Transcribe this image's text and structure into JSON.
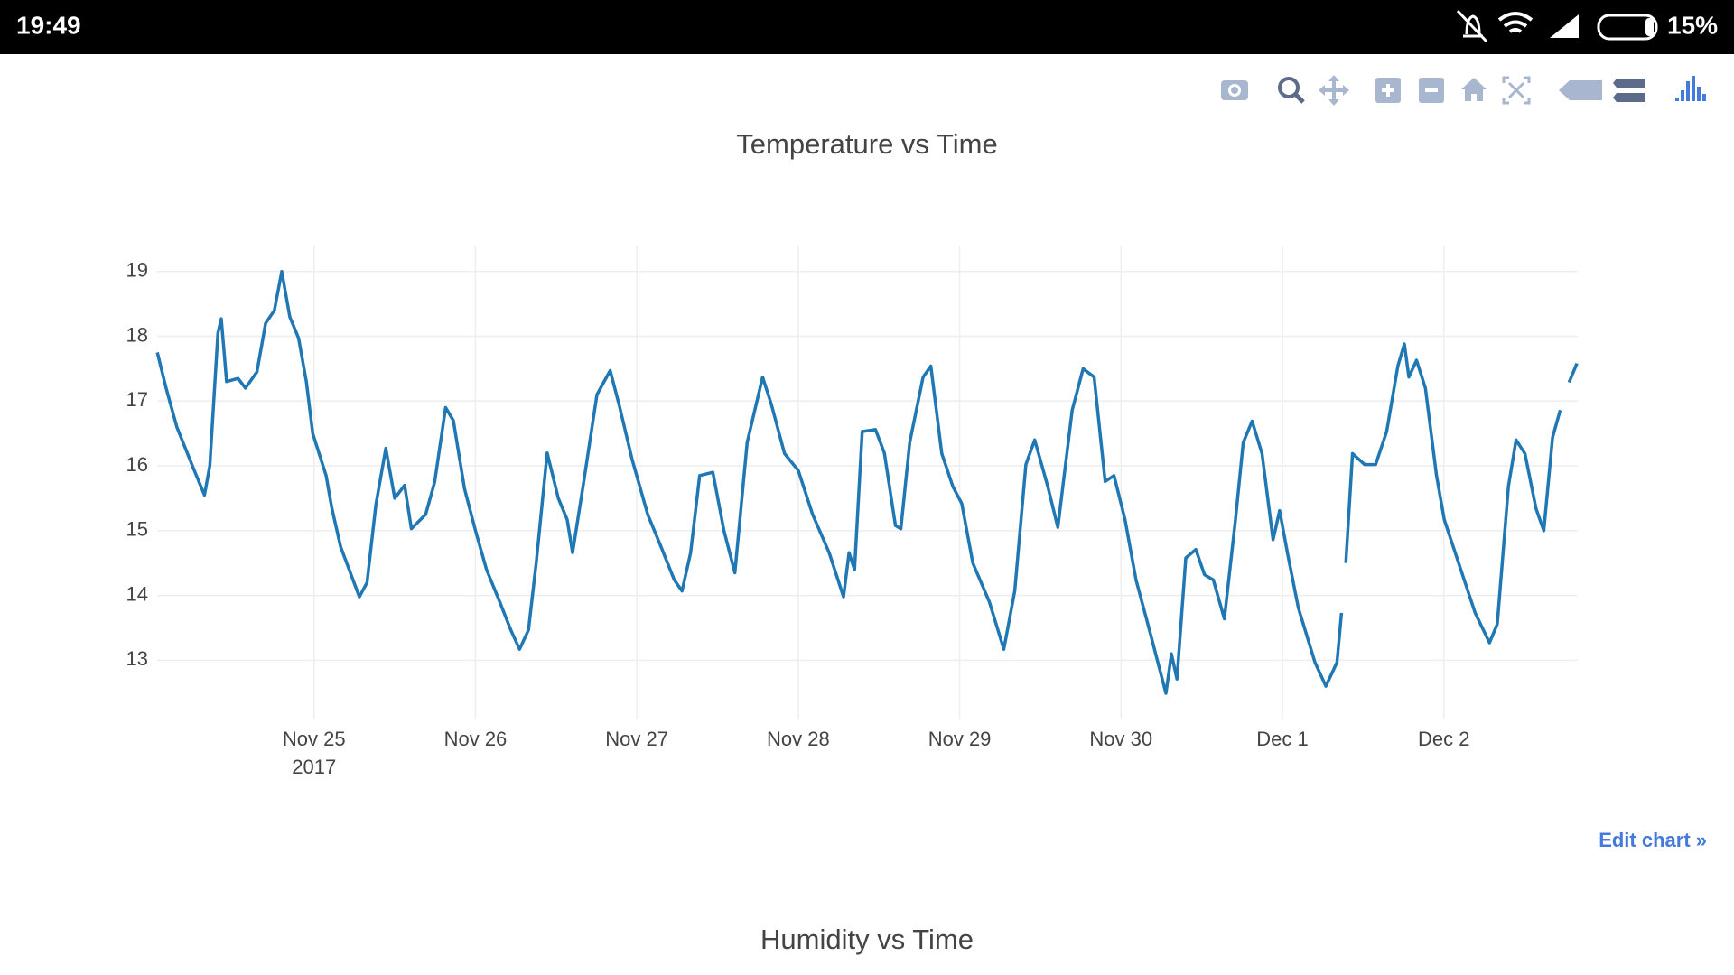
{
  "status_bar": {
    "time": "19:49",
    "battery": "15%"
  },
  "chart_data": {
    "type": "line",
    "title": "Temperature vs Time",
    "x": [
      "2017-11-24T00:42",
      "2017-11-24T02:00",
      "2017-11-24T03:36",
      "2017-11-24T06:06",
      "2017-11-24T07:42",
      "2017-11-24T08:30",
      "2017-11-24T09:42",
      "2017-11-24T10:12",
      "2017-11-24T11:00",
      "2017-11-24T12:42",
      "2017-11-24T13:48",
      "2017-11-24T15:30",
      "2017-11-24T16:48",
      "2017-11-24T18:06",
      "2017-11-24T19:12",
      "2017-11-24T20:24",
      "2017-11-24T21:42",
      "2017-11-24T22:51",
      "2017-11-24T23:48",
      "2017-11-25T01:48",
      "2017-11-25T02:38",
      "2017-11-25T03:57",
      "2017-11-25T05:35",
      "2017-11-25T06:44",
      "2017-11-25T07:53",
      "2017-11-25T09:12",
      "2017-11-25T10:40",
      "2017-11-25T12:00",
      "2017-11-25T13:28",
      "2017-11-25T14:28",
      "2017-11-25T16:36",
      "2017-11-25T17:56",
      "2017-11-25T19:34",
      "2017-11-25T20:43",
      "2017-11-25T22:22",
      "2017-11-26T00:00",
      "2017-11-26T01:39",
      "2017-11-26T03:37",
      "2017-11-26T05:15",
      "2017-11-26T06:34",
      "2017-11-26T07:53",
      "2017-11-26T09:02",
      "2017-11-26T10:40",
      "2017-11-26T12:19",
      "2017-11-26T13:38",
      "2017-11-26T14:27",
      "2017-11-26T16:06",
      "2017-11-26T18:04",
      "2017-11-26T20:02",
      "2017-11-26T21:21",
      "2017-11-26T23:18",
      "2017-11-27T01:37",
      "2017-11-27T03:36",
      "2017-11-27T05:34",
      "2017-11-27T06:43",
      "2017-11-27T08:00",
      "2017-11-27T09:20",
      "2017-11-27T11:18",
      "2017-11-27T12:57",
      "2017-11-27T14:35",
      "2017-11-27T16:24",
      "2017-11-27T18:42",
      "2017-11-27T20:00",
      "2017-11-27T21:58",
      "2017-11-28T00:00",
      "2017-11-28T02:08",
      "2017-11-28T04:36",
      "2017-11-28T06:44",
      "2017-11-28T07:33",
      "2017-11-28T08:22",
      "2017-11-28T09:31",
      "2017-11-28T11:29",
      "2017-11-28T12:48",
      "2017-11-28T14:27",
      "2017-11-28T15:16",
      "2017-11-28T16:35",
      "2017-11-28T18:34",
      "2017-11-28T19:43",
      "2017-11-28T21:21",
      "2017-11-28T23:00",
      "2017-11-29T00:19",
      "2017-11-29T01:58",
      "2017-11-29T04:25",
      "2017-11-29T06:34",
      "2017-11-29T08:12",
      "2017-11-29T09:51",
      "2017-11-29T11:10",
      "2017-11-29T13:07",
      "2017-11-29T14:36",
      "2017-11-29T16:44",
      "2017-11-29T18:22",
      "2017-11-29T20:00",
      "2017-11-29T21:38",
      "2017-11-29T22:57",
      "2017-11-30T00:36",
      "2017-11-30T02:14",
      "2017-11-30T04:13",
      "2017-11-30T06:41",
      "2017-11-30T07:30",
      "2017-11-30T08:19",
      "2017-11-30T09:38",
      "2017-11-30T11:07",
      "2017-11-30T12:25",
      "2017-11-30T13:44",
      "2017-11-30T15:22",
      "2017-11-30T17:01",
      "2017-11-30T18:10",
      "2017-11-30T19:29",
      "2017-11-30T20:58",
      "2017-11-30T22:36",
      "2017-11-30T23:35",
      "2017-12-01T00:44",
      "2017-12-01T02:22",
      "2017-12-01T04:50",
      "2017-12-01T06:28",
      "2017-12-01T08:07",
      "2017-12-01T08:47",
      "2017-12-01T09:06",
      "2017-12-01T09:26",
      "2017-12-01T10:25",
      "2017-12-01T12:13",
      "2017-12-01T13:52",
      "2017-12-01T15:30",
      "2017-12-01T17:10",
      "2017-12-01T18:08",
      "2017-12-01T18:48",
      "2017-12-01T19:57",
      "2017-12-01T21:16",
      "2017-12-01T22:55",
      "2017-12-02T00:04",
      "2017-12-02T02:12",
      "2017-12-02T04:40",
      "2017-12-02T06:48",
      "2017-12-02T07:57",
      "2017-12-02T09:36",
      "2017-12-02T10:45",
      "2017-12-02T12:04",
      "2017-12-02T13:43",
      "2017-12-02T14:52",
      "2017-12-02T16:10",
      "2017-12-02T17:19",
      "2017-12-02T18:00",
      "2017-12-02T18:38",
      "2017-12-02T19:48"
    ],
    "series": [
      {
        "color": "#1f77b4",
        "values": [
          17.75,
          17.2,
          16.6,
          15.95,
          15.55,
          16.0,
          18.05,
          18.27,
          17.3,
          17.35,
          17.2,
          17.45,
          18.2,
          18.4,
          19.0,
          18.3,
          17.97,
          17.3,
          16.5,
          15.85,
          15.35,
          14.75,
          14.3,
          13.98,
          14.2,
          15.4,
          16.27,
          15.5,
          15.7,
          15.03,
          15.25,
          15.75,
          16.9,
          16.7,
          15.65,
          15.0,
          14.4,
          13.9,
          13.47,
          13.17,
          13.47,
          14.5,
          16.2,
          15.5,
          15.17,
          14.66,
          15.75,
          17.1,
          17.47,
          16.95,
          16.1,
          15.25,
          14.75,
          14.24,
          14.07,
          14.66,
          15.85,
          15.9,
          15.0,
          14.35,
          16.36,
          17.37,
          16.95,
          16.19,
          15.93,
          15.25,
          14.66,
          13.98,
          14.66,
          14.4,
          16.53,
          16.56,
          16.2,
          15.08,
          15.03,
          16.36,
          17.37,
          17.54,
          16.19,
          15.68,
          15.42,
          14.5,
          13.9,
          13.17,
          14.07,
          16.02,
          16.4,
          15.68,
          15.05,
          16.86,
          17.5,
          17.37,
          15.76,
          15.85,
          15.17,
          14.24,
          13.47,
          12.49,
          13.1,
          12.71,
          14.58,
          14.71,
          14.32,
          14.24,
          13.64,
          15.17,
          16.36,
          16.69,
          16.19,
          14.86,
          15.31,
          14.66,
          13.81,
          12.97,
          12.6,
          12.97,
          13.73,
          null,
          14.5,
          16.19,
          16.02,
          16.02,
          16.53,
          17.54,
          17.88,
          17.37,
          17.63,
          17.2,
          15.85,
          15.17,
          14.5,
          13.73,
          13.27,
          13.56,
          15.68,
          16.4,
          16.19,
          15.34,
          15.0,
          16.44,
          16.86,
          null,
          17.29,
          17.58
        ]
      }
    ],
    "xlim": [
      "2017-11-24T00:40",
      "2017-12-02T19:55"
    ],
    "ylim": [
      12.1,
      19.4
    ],
    "xticks": [
      {
        "value": "2017-11-25T00:00",
        "label": "Nov 25"
      },
      {
        "value": "2017-11-26T00:00",
        "label": "Nov 26"
      },
      {
        "value": "2017-11-27T00:00",
        "label": "Nov 27"
      },
      {
        "value": "2017-11-28T00:00",
        "label": "Nov 28"
      },
      {
        "value": "2017-11-29T00:00",
        "label": "Nov 29"
      },
      {
        "value": "2017-11-30T00:00",
        "label": "Nov 30"
      },
      {
        "value": "2017-12-01T00:00",
        "label": "Dec 1"
      },
      {
        "value": "2017-12-02T00:00",
        "label": "Dec 2"
      }
    ],
    "xtick_year": "2017",
    "yticks": [
      13,
      14,
      15,
      16,
      17,
      18,
      19
    ],
    "grid": true
  },
  "edit_link": "Edit chart »",
  "next_chart": {
    "title": "Humidity vs Time"
  }
}
